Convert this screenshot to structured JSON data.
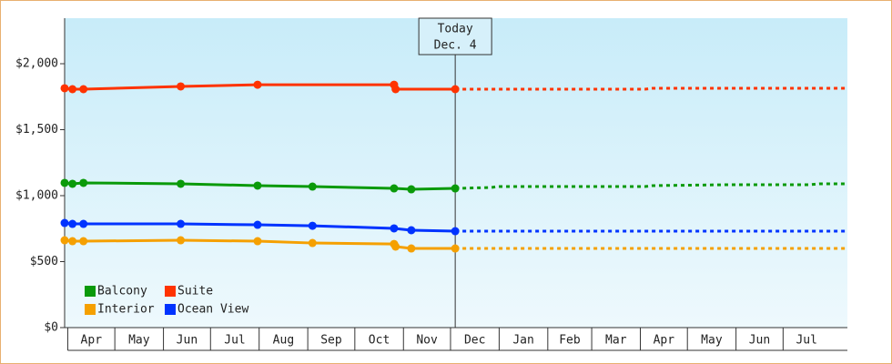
{
  "chart_data": {
    "type": "line",
    "annotation": {
      "lines": [
        "Today",
        "Dec. 4"
      ],
      "x": 247
    },
    "xlim": [
      -2,
      497
    ],
    "xticks": [
      {
        "value": 0,
        "label": "Apr"
      },
      {
        "value": 30,
        "label": "May"
      },
      {
        "value": 61,
        "label": "Jun"
      },
      {
        "value": 91,
        "label": "Jul"
      },
      {
        "value": 122,
        "label": "Aug"
      },
      {
        "value": 153,
        "label": "Sep"
      },
      {
        "value": 183,
        "label": "Oct"
      },
      {
        "value": 214,
        "label": "Nov"
      },
      {
        "value": 244,
        "label": "Dec"
      },
      {
        "value": 275,
        "label": "Jan"
      },
      {
        "value": 306,
        "label": "Feb"
      },
      {
        "value": 334,
        "label": "Mar"
      },
      {
        "value": 365,
        "label": "Apr"
      },
      {
        "value": 395,
        "label": "May"
      },
      {
        "value": 426,
        "label": "Jun"
      },
      {
        "value": 456,
        "label": "Jul"
      }
    ],
    "ylim": [
      0,
      2345
    ],
    "yticks": [
      {
        "value": 0,
        "label": "$0"
      },
      {
        "value": 500,
        "label": "$500"
      },
      {
        "value": 1000,
        "label": "$1,000"
      },
      {
        "value": 1500,
        "label": "$1,500"
      },
      {
        "value": 2000,
        "label": "$2,000"
      }
    ],
    "series": [
      {
        "name": "Balcony",
        "color": "#0a9a0a",
        "x": [
          -2,
          3,
          10,
          72,
          121,
          156,
          208,
          219,
          247
        ],
        "values": [
          1097,
          1090,
          1097,
          1090,
          1076,
          1069,
          1055,
          1048,
          1055
        ],
        "projected_x": [
          247,
          270,
          274,
          368,
          373,
          421,
          473,
          479,
          497
        ],
        "projected_values": [
          1055,
          1062,
          1069,
          1069,
          1076,
          1083,
          1083,
          1090,
          1090
        ]
      },
      {
        "name": "Suite",
        "color": "#ff3300",
        "x": [
          -2,
          3,
          10,
          72,
          121,
          208,
          209,
          247
        ],
        "values": [
          1814,
          1807,
          1807,
          1828,
          1841,
          1841,
          1807,
          1807
        ],
        "projected_x": [
          247,
          368,
          373,
          497
        ],
        "projected_values": [
          1807,
          1807,
          1814,
          1814
        ]
      },
      {
        "name": "Interior",
        "color": "#f5a000",
        "x": [
          -2,
          3,
          10,
          72,
          121,
          156,
          208,
          209,
          219,
          247
        ],
        "values": [
          662,
          655,
          655,
          662,
          655,
          641,
          634,
          614,
          600,
          600
        ],
        "projected_x": [
          247,
          497
        ],
        "projected_values": [
          600,
          600
        ]
      },
      {
        "name": "Ocean View",
        "color": "#0033ff",
        "x": [
          -2,
          3,
          10,
          72,
          121,
          156,
          208,
          219,
          247
        ],
        "values": [
          793,
          786,
          786,
          786,
          779,
          772,
          752,
          738,
          731
        ],
        "projected_x": [
          247,
          497
        ],
        "projected_values": [
          731,
          731
        ]
      }
    ]
  }
}
